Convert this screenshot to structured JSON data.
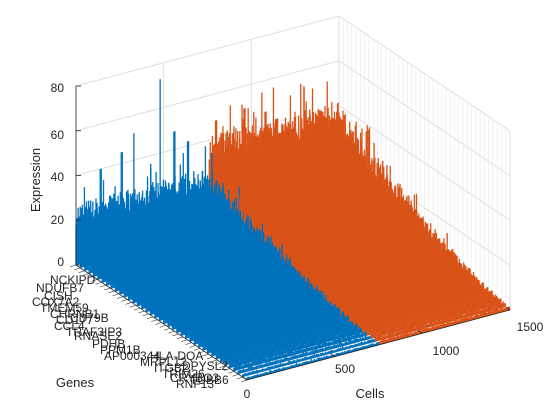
{
  "chart_data": {
    "type": "bar3d",
    "title": "",
    "xlabel": "Cells",
    "ylabel": "Genes",
    "zlabel": "Expression",
    "xlim": [
      0,
      1500
    ],
    "x_ticks": [
      "0",
      "500",
      "1000",
      "1500"
    ],
    "zlim": [
      0,
      80
    ],
    "z_ticks": [
      "0",
      "20",
      "40",
      "60",
      "80"
    ],
    "grid": true,
    "gene_labels": [
      "NCKIPD",
      "NDUFB7",
      "CISH",
      "COX7A2",
      "TMEM59",
      "CHRNB1",
      "CD177",
      "CCL4",
      "TRAF3IP3",
      "CD79B",
      "RNASE2",
      "PDHB",
      "PPM1B",
      "AP000344",
      "MRPL12",
      "ITGB2",
      "TRIM26",
      "HLA-DQA",
      "CRYBG3",
      "DPYSL2",
      "RNF13",
      "TUBB6"
    ],
    "series": [
      {
        "name": "",
        "color": "#0072bd",
        "cells": [
          0,
          760
        ],
        "typical_expression": [
          18,
          28
        ],
        "peaks": [
          {
            "cell": 140,
            "value": 40
          },
          {
            "cell": 260,
            "value": 45
          },
          {
            "cell": 330,
            "value": 52
          },
          {
            "cell": 480,
            "value": 73
          },
          {
            "cell": 560,
            "value": 48
          },
          {
            "cell": 640,
            "value": 42
          }
        ]
      },
      {
        "name": "",
        "color": "#d95319",
        "cells": [
          760,
          1500
        ],
        "typical_expression": [
          28,
          42
        ],
        "peaks": [
          {
            "cell": 800,
            "value": 48
          },
          {
            "cell": 880,
            "value": 53
          },
          {
            "cell": 960,
            "value": 50
          },
          {
            "cell": 1080,
            "value": 46
          },
          {
            "cell": 1250,
            "value": 40
          }
        ]
      }
    ]
  }
}
